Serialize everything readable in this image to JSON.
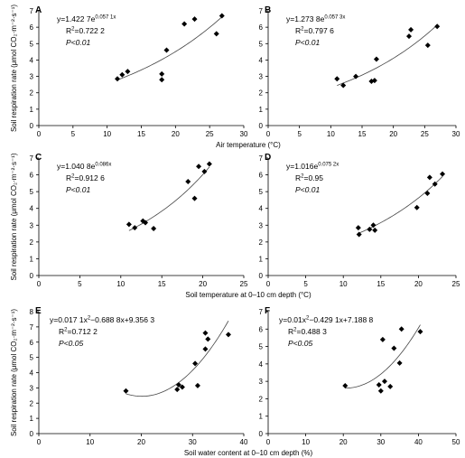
{
  "chart_data": [
    {
      "type": "scatter",
      "label": "A",
      "fit": "exponential",
      "color": "#000000",
      "x": [
        11.5,
        12.2,
        13,
        18,
        18,
        18.7,
        21.3,
        22.8,
        26,
        26.8
      ],
      "values": [
        2.85,
        3.1,
        3.3,
        2.8,
        3.15,
        4.6,
        6.2,
        6.5,
        5.6,
        6.7
      ],
      "xlim": [
        0,
        30
      ],
      "ylim": [
        0,
        7
      ],
      "xticks": [
        0,
        5,
        10,
        15,
        20,
        25,
        30
      ],
      "yticks": [
        0,
        1,
        2,
        3,
        4,
        5,
        6,
        7
      ],
      "equation": [
        "y=1.422 7e",
        "0.057 1x"
      ],
      "r2": [
        "R",
        "2",
        "=0.722 2"
      ],
      "p": "P<0.01",
      "xlabel": "Air temperature (°C)",
      "ylabel": "Soil respiration rate (μmol CO₂·m⁻²·s⁻¹)"
    },
    {
      "type": "scatter",
      "label": "B",
      "fit": "exponential",
      "color": "#000000",
      "x": [
        11,
        12,
        14,
        16.5,
        17,
        17.3,
        22.5,
        22.8,
        25.5,
        27
      ],
      "values": [
        2.85,
        2.45,
        3.0,
        2.7,
        2.75,
        4.05,
        5.45,
        5.85,
        4.9,
        6.05
      ],
      "xlim": [
        0,
        30
      ],
      "ylim": [
        0,
        7
      ],
      "xticks": [
        0,
        5,
        10,
        15,
        20,
        25,
        30
      ],
      "yticks": [
        0,
        1,
        2,
        3,
        4,
        5,
        6,
        7
      ],
      "equation": [
        "y=1.273 8e",
        "0.057 3x"
      ],
      "r2": [
        "R",
        "2",
        "=0.797 6"
      ],
      "p": "P<0.01"
    },
    {
      "type": "scatter",
      "label": "C",
      "fit": "exponential",
      "color": "#000000",
      "x": [
        11,
        11.7,
        12.7,
        13,
        14,
        18.2,
        19,
        19.5,
        20.2,
        20.8
      ],
      "values": [
        3.05,
        2.85,
        3.25,
        3.15,
        2.8,
        5.6,
        4.6,
        6.5,
        6.2,
        6.65
      ],
      "xlim": [
        0,
        25
      ],
      "ylim": [
        0,
        7
      ],
      "xticks": [
        0,
        5,
        10,
        15,
        20,
        25
      ],
      "yticks": [
        0,
        1,
        2,
        3,
        4,
        5,
        6,
        7
      ],
      "equation": [
        "y=1.040 8e",
        "0.086x"
      ],
      "r2": [
        "R",
        "2",
        "=0.912 6"
      ],
      "p": "P<0.01",
      "xlabel": "Soil temperature at 0–10 cm depth (°C)",
      "ylabel": "Soil respiration rate (μmol CO₂·m⁻²·s⁻¹)"
    },
    {
      "type": "scatter",
      "label": "D",
      "fit": "exponential",
      "color": "#000000",
      "x": [
        12,
        12.1,
        13.5,
        14,
        14.2,
        19.8,
        21.2,
        21.5,
        22.2,
        23.2
      ],
      "values": [
        2.85,
        2.45,
        2.75,
        3.0,
        2.7,
        4.05,
        4.9,
        5.85,
        5.45,
        6.05
      ],
      "xlim": [
        0,
        25
      ],
      "ylim": [
        0,
        7
      ],
      "xticks": [
        0,
        5,
        10,
        15,
        20,
        25
      ],
      "yticks": [
        0,
        1,
        2,
        3,
        4,
        5,
        6,
        7
      ],
      "equation": [
        "y=1.016e",
        "0.075 2x"
      ],
      "r2": [
        "R",
        "2",
        "=0.95"
      ],
      "p": "P<0.01"
    },
    {
      "type": "scatter",
      "label": "E",
      "fit": "quadratic",
      "color": "#000000",
      "x": [
        17,
        27,
        27.3,
        28,
        30.5,
        31,
        32.5,
        32.5,
        33,
        37
      ],
      "values": [
        2.8,
        2.9,
        3.2,
        3.05,
        4.6,
        3.15,
        6.6,
        5.55,
        6.2,
        6.5
      ],
      "xlim": [
        0,
        40
      ],
      "ylim": [
        0,
        8
      ],
      "xticks": [
        0,
        10,
        20,
        30,
        40
      ],
      "yticks": [
        0,
        1,
        2,
        3,
        4,
        5,
        6,
        7,
        8
      ],
      "equation": [
        "y=0.017 1x",
        "2",
        "−0.688 8x+9.356 3"
      ],
      "r2": [
        "R",
        "2",
        "=0.712 2"
      ],
      "p": "P<0.05",
      "xlabel": "Soil water content at 0–10 cm depth (%)",
      "ylabel": "Soil respiration rate (μmol CO₂·m⁻²·s⁻¹)"
    },
    {
      "type": "scatter",
      "label": "F",
      "fit": "quadratic",
      "color": "#000000",
      "x": [
        20.5,
        29.5,
        30,
        30.5,
        31,
        32.5,
        33.5,
        35,
        35.5,
        40.5
      ],
      "values": [
        2.75,
        2.8,
        2.45,
        5.4,
        3.0,
        2.7,
        4.9,
        4.05,
        6.0,
        5.85
      ],
      "xlim": [
        0,
        50
      ],
      "ylim": [
        0,
        7
      ],
      "xticks": [
        0,
        10,
        20,
        30,
        40,
        50
      ],
      "yticks": [
        0,
        1,
        2,
        3,
        4,
        5,
        6,
        7
      ],
      "equation": [
        "y=0.01x",
        "2",
        "−0.429 1x+7.188 8"
      ],
      "r2": [
        "R",
        "2",
        "=0.488 3"
      ],
      "p": "P<0.05"
    }
  ]
}
